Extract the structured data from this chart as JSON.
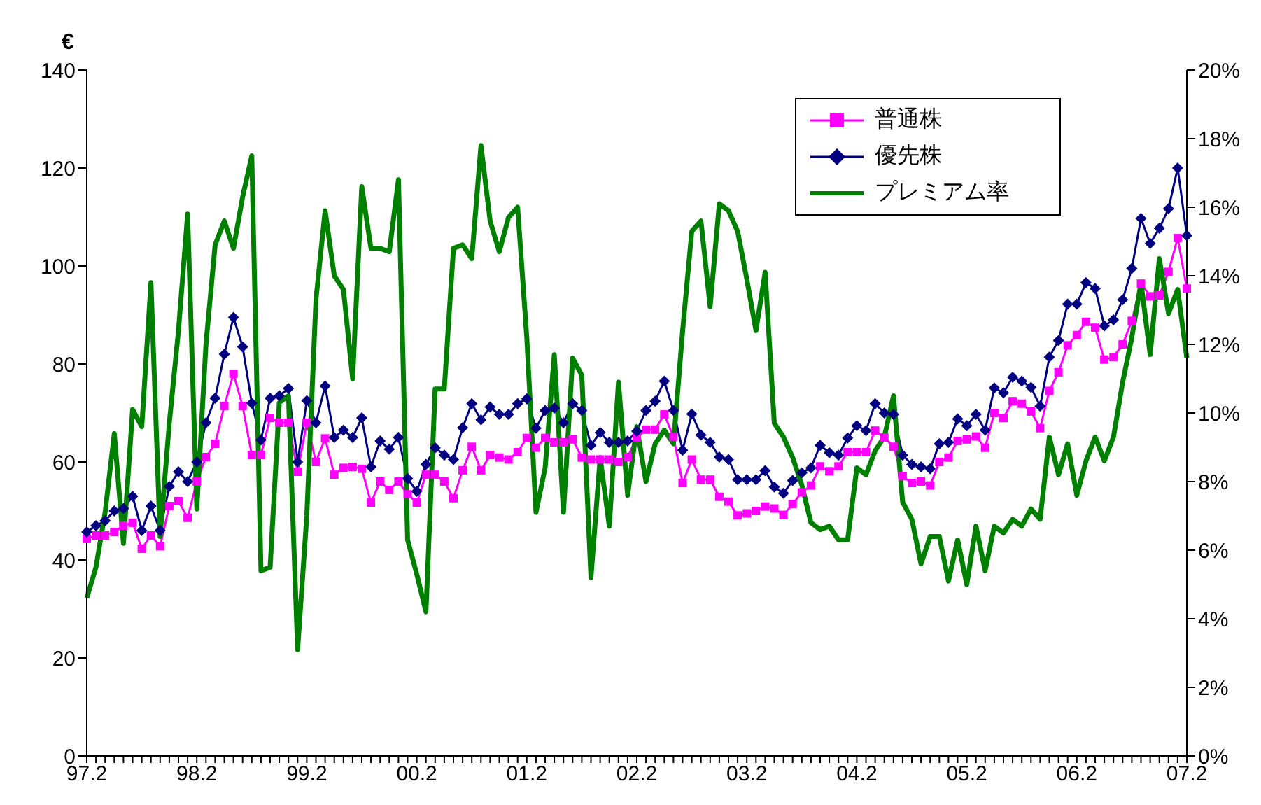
{
  "chart_data": {
    "type": "line",
    "ylabel": "€",
    "categories": [
      "97.2",
      null,
      null,
      null,
      null,
      null,
      null,
      null,
      null,
      null,
      null,
      null,
      "98.2",
      null,
      null,
      null,
      null,
      null,
      null,
      null,
      null,
      null,
      null,
      null,
      "99.2",
      null,
      null,
      null,
      null,
      null,
      null,
      null,
      null,
      null,
      null,
      null,
      "00.2",
      null,
      null,
      null,
      null,
      null,
      null,
      null,
      null,
      null,
      null,
      null,
      "01.2",
      null,
      null,
      null,
      null,
      null,
      null,
      null,
      null,
      null,
      null,
      null,
      "02.2",
      null,
      null,
      null,
      null,
      null,
      null,
      null,
      null,
      null,
      null,
      null,
      "03.2",
      null,
      null,
      null,
      null,
      null,
      null,
      null,
      null,
      null,
      null,
      null,
      "04.2",
      null,
      null,
      null,
      null,
      null,
      null,
      null,
      null,
      null,
      null,
      null,
      "05.2",
      null,
      null,
      null,
      null,
      null,
      null,
      null,
      null,
      null,
      null,
      null,
      "06.2",
      null,
      null,
      null,
      null,
      null,
      null,
      null,
      null,
      null,
      null,
      null,
      "07.2"
    ],
    "series": [
      {
        "name": "普通株",
        "color": "#ff00ff",
        "marker": "square",
        "values": [
          44.3,
          45,
          45,
          45.7,
          47,
          47.6,
          42.3,
          45,
          42.8,
          51,
          52,
          48.6,
          56,
          61,
          63.7,
          71.4,
          78,
          71.4,
          61.4,
          61.4,
          69,
          68,
          68,
          58,
          68,
          60,
          64.8,
          57.4,
          58.8,
          59,
          58.6,
          51.7,
          56,
          54.3,
          56,
          53.4,
          51.7,
          57.4,
          57.4,
          56,
          52.6,
          58.3,
          63.1,
          58.3,
          61.4,
          60.9,
          60.5,
          62,
          64.9,
          62.9,
          64.9,
          64,
          64,
          64.6,
          60.9,
          60.5,
          60.5,
          60.5,
          60,
          61,
          65,
          66.6,
          66.6,
          69.7,
          65.1,
          55.7,
          60.5,
          56.4,
          56.4,
          52.9,
          51.9,
          49.1,
          49.5,
          50,
          50.9,
          50.5,
          49.2,
          51.4,
          53.8,
          55.2,
          59.1,
          58.1,
          59.1,
          62,
          62,
          62,
          66.4,
          65,
          63.1,
          57.1,
          55.7,
          56,
          55.2,
          60,
          60.9,
          64.3,
          64.6,
          65.2,
          62.9,
          70,
          69,
          72.4,
          71.9,
          70.3,
          66.9,
          74.5,
          78.3,
          83.8,
          85.9,
          88.6,
          87.4,
          80.9,
          81.4,
          84,
          88.8,
          96.4,
          93.8,
          94,
          98.8,
          105.7,
          95.4
        ]
      },
      {
        "name": "優先株",
        "color": "#000080",
        "marker": "diamond",
        "values": [
          45.7,
          47,
          48,
          50,
          50.5,
          53,
          46,
          51,
          46,
          55,
          58,
          56,
          60,
          68,
          73,
          82,
          89.5,
          83.5,
          72,
          64.5,
          73,
          73.5,
          75,
          60,
          72.5,
          68,
          75.5,
          65,
          66.5,
          65,
          69,
          59,
          64.3,
          62.6,
          65,
          56.6,
          54,
          59.5,
          62.9,
          61.4,
          60.5,
          67,
          71.9,
          68.6,
          71.2,
          69.7,
          69.7,
          71.9,
          72.9,
          66.9,
          70.5,
          71,
          68,
          71.9,
          70.5,
          63.4,
          66,
          64,
          64,
          64.3,
          66.3,
          70.5,
          72.4,
          76.5,
          70.5,
          62.4,
          69.8,
          65.5,
          64,
          61,
          60.5,
          56.4,
          56.4,
          56.4,
          58.2,
          54.9,
          53.6,
          56.2,
          57.8,
          58.8,
          63.4,
          61.9,
          61.4,
          64.9,
          67.4,
          66.4,
          71.9,
          70,
          69.7,
          61.4,
          59.5,
          59,
          58.6,
          63.7,
          64,
          68.8,
          67.4,
          69.7,
          66.5,
          75.1,
          74.1,
          77.3,
          76.5,
          75.2,
          71.4,
          81.4,
          84.8,
          92.2,
          92.2,
          96.6,
          95.4,
          87.8,
          89,
          93.1,
          99.5,
          109.7,
          104.6,
          107.7,
          111.7,
          120,
          106.2
        ]
      },
      {
        "name": "プレミアム率",
        "color": "#008000",
        "marker": "none",
        "axis": "y2",
        "values": [
          4.6,
          5.5,
          7.1,
          9.4,
          6.2,
          10.1,
          9.6,
          13.8,
          6.4,
          9.7,
          12.4,
          15.8,
          7.2,
          12.0,
          14.9,
          15.6,
          14.8,
          16.3,
          17.5,
          5.4,
          5.5,
          10.3,
          10.5,
          3.1,
          7.0,
          13.3,
          15.9,
          14.0,
          13.6,
          11.0,
          16.6,
          14.8,
          14.8,
          14.7,
          16.8,
          6.3,
          5.3,
          4.2,
          10.7,
          10.7,
          14.8,
          14.9,
          14.5,
          17.8,
          15.6,
          14.7,
          15.7,
          16.0,
          12.2,
          7.1,
          8.4,
          11.7,
          7.1,
          11.6,
          11.1,
          5.2,
          8.7,
          6.7,
          10.9,
          7.6,
          9.6,
          8.0,
          9.1,
          9.5,
          9.1,
          12.4,
          15.3,
          15.6,
          13.1,
          16.1,
          15.9,
          15.3,
          13.9,
          12.4,
          14.1,
          9.7,
          9.3,
          8.7,
          7.9,
          6.8,
          6.6,
          6.7,
          6.3,
          6.3,
          8.4,
          8.2,
          8.9,
          9.3,
          10.5,
          7.4,
          6.9,
          5.6,
          6.4,
          6.4,
          5.1,
          6.3,
          5.0,
          6.7,
          5.4,
          6.7,
          6.5,
          6.9,
          6.7,
          7.2,
          6.9,
          9.3,
          8.2,
          9.1,
          7.6,
          8.6,
          9.3,
          8.6,
          9.3,
          10.9,
          12.2,
          13.8,
          11.7,
          14.5,
          12.9,
          13.6,
          11.6
        ]
      }
    ],
    "ylim": [
      0,
      140
    ],
    "yticks": [
      0,
      20,
      40,
      60,
      80,
      100,
      120,
      140
    ],
    "y2lim": [
      0,
      20
    ],
    "y2ticks": [
      {
        "value": 0,
        "label": "0%"
      },
      {
        "value": 2,
        "label": "2%"
      },
      {
        "value": 4,
        "label": "4%"
      },
      {
        "value": 6,
        "label": "6%"
      },
      {
        "value": 8,
        "label": "8%"
      },
      {
        "value": 10,
        "label": "10%"
      },
      {
        "value": 12,
        "label": "12%"
      },
      {
        "value": 14,
        "label": "14%"
      },
      {
        "value": 16,
        "label": "16%"
      },
      {
        "value": 18,
        "label": "18%"
      },
      {
        "value": 20,
        "label": "20%"
      }
    ],
    "grid": false,
    "legend": "top right"
  }
}
